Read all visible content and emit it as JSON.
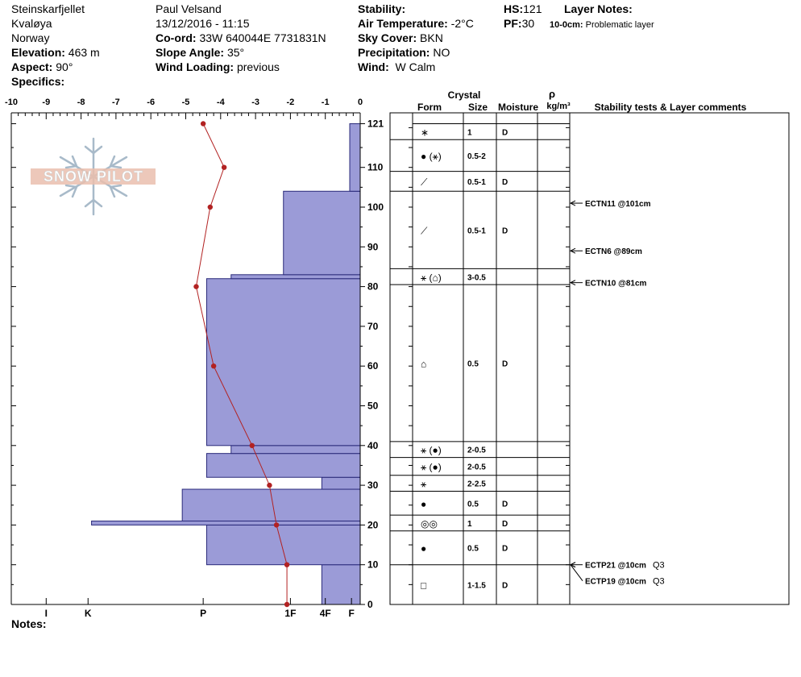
{
  "header": {
    "location": "Steinskarfjellet",
    "region": "Kvaløya",
    "country": "Norway",
    "elevation_label": "Elevation:",
    "elevation": "463 m",
    "aspect_label": "Aspect:",
    "aspect": "90°",
    "specifics_label": "Specifics:",
    "observer": "Paul Velsand",
    "datetime": "13/12/2016 - 11:15",
    "coord_label": "Co-ord:",
    "coord": "33W 640044E 7731831N",
    "slope_label": "Slope Angle:",
    "slope": "35°",
    "wind_loading_label": "Wind Loading:",
    "wind_loading": "previous",
    "stability_label": "Stability:",
    "air_temp_label": "Air Temperature:",
    "air_temp": "-2°C",
    "sky_label": "Sky Cover:",
    "sky": "BKN",
    "precip_label": "Precipitation:",
    "precip": "NO",
    "wind_label": "Wind:",
    "wind": "W Calm",
    "hs_label": "HS:",
    "hs": "121",
    "pf_label": "PF:",
    "pf": "30",
    "layer_notes_label": "Layer Notes:",
    "layer_note_depth": "10-0cm:",
    "layer_note_text": "Problematic layer"
  },
  "logo": {
    "text": "SNOW PILOT"
  },
  "notes_label": "Notes:",
  "table_headers": {
    "crystal": "Crystal",
    "form": "Form",
    "size": "Size",
    "moisture": "Moisture",
    "rho": "ρ",
    "density_unit": "kg/m³",
    "comments": "Stability tests & Layer comments"
  },
  "colors": {
    "hardness_fill": "#9b9bd7",
    "temperature_line": "#b22222"
  },
  "chart_data": {
    "type": "snow-profile",
    "temp_axis": {
      "min": -10,
      "max": 0,
      "ticks": [
        "-10",
        "-9",
        "-8",
        "-7",
        "-6",
        "-5",
        "-4",
        "-3",
        "-2",
        "-1",
        "0"
      ]
    },
    "height_axis": {
      "min": 0,
      "max": 124,
      "ticks": [
        0,
        10,
        20,
        30,
        40,
        50,
        60,
        70,
        80,
        90,
        100,
        110,
        121
      ]
    },
    "hardness_axis_labels": [
      {
        "label": "I",
        "temp": -9
      },
      {
        "label": "K",
        "temp": -7.8
      },
      {
        "label": "P",
        "temp": -4.5
      },
      {
        "label": "1F",
        "temp": -2
      },
      {
        "label": "4F",
        "temp": -1
      },
      {
        "label": "F",
        "temp": -0.25
      }
    ],
    "temperature_profile": [
      {
        "h": 121,
        "t": -4.5
      },
      {
        "h": 110,
        "t": -3.9
      },
      {
        "h": 100,
        "t": -4.3
      },
      {
        "h": 80,
        "t": -4.7
      },
      {
        "h": 60,
        "t": -4.2
      },
      {
        "h": 40,
        "t": -3.1
      },
      {
        "h": 30,
        "t": -2.6
      },
      {
        "h": 20,
        "t": -2.4
      },
      {
        "h": 10,
        "t": -2.1
      },
      {
        "h": 0,
        "t": -2.1
      }
    ],
    "hardness_layers": [
      {
        "bottom": 0,
        "top": 10,
        "hardness": "4F",
        "extent": -1.1
      },
      {
        "bottom": 10,
        "top": 20,
        "hardness": "P",
        "extent": -4.4
      },
      {
        "bottom": 20,
        "top": 21,
        "hardness": "K",
        "extent": -7.7
      },
      {
        "bottom": 21,
        "top": 29,
        "hardness": "P-",
        "extent": -5.1
      },
      {
        "bottom": 29,
        "top": 32,
        "hardness": "4F",
        "extent": -1.1
      },
      {
        "bottom": 32,
        "top": 38,
        "hardness": "P",
        "extent": -4.4
      },
      {
        "bottom": 38,
        "top": 40,
        "hardness": "P-",
        "extent": -3.7
      },
      {
        "bottom": 40,
        "top": 82,
        "hardness": "P",
        "extent": -4.4
      },
      {
        "bottom": 82,
        "top": 83,
        "hardness": "P-",
        "extent": -3.7
      },
      {
        "bottom": 83,
        "top": 104,
        "hardness": "1F",
        "extent": -2.2
      },
      {
        "bottom": 104,
        "top": 121,
        "hardness": "F",
        "extent": -0.3
      }
    ],
    "layers": [
      {
        "top": 121,
        "bottom": 117,
        "form": "∗",
        "size": "1",
        "moisture": "D"
      },
      {
        "top": 117,
        "bottom": 109,
        "form": "● (⚹)",
        "size": "0.5-2",
        "moisture": ""
      },
      {
        "top": 109,
        "bottom": 104,
        "form": "⟋",
        "size": "0.5-1",
        "moisture": "D"
      },
      {
        "top": 104,
        "bottom": 84.5,
        "form": "⟋",
        "size": "0.5-1",
        "moisture": "D"
      },
      {
        "top": 84.5,
        "bottom": 80.5,
        "form": "⚹ (⌂)",
        "size": "3-0.5",
        "moisture": ""
      },
      {
        "top": 80.5,
        "bottom": 41,
        "form": "⌂",
        "size": "0.5",
        "moisture": "D"
      },
      {
        "top": 41,
        "bottom": 37,
        "form": "⚹ (●)",
        "size": "2-0.5",
        "moisture": ""
      },
      {
        "top": 37,
        "bottom": 32.5,
        "form": "⚹ (●)",
        "size": "2-0.5",
        "moisture": ""
      },
      {
        "top": 32.5,
        "bottom": 28.5,
        "form": "⚹",
        "size": "2-2.5",
        "moisture": ""
      },
      {
        "top": 28.5,
        "bottom": 22.5,
        "form": "●",
        "size": "0.5",
        "moisture": "D"
      },
      {
        "top": 22.5,
        "bottom": 18.5,
        "form": "◎◎",
        "size": "1",
        "moisture": "D"
      },
      {
        "top": 18.5,
        "bottom": 10,
        "form": "●",
        "size": "0.5",
        "moisture": "D"
      },
      {
        "top": 10,
        "bottom": 0,
        "form": "□",
        "size": "1-1.5",
        "moisture": "D"
      }
    ],
    "stability_tests": [
      {
        "label": "ECTN11 @101cm",
        "h": 101,
        "quality": ""
      },
      {
        "label": "ECTN6 @89cm",
        "h": 89,
        "quality": ""
      },
      {
        "label": "ECTN10 @81cm",
        "h": 81,
        "quality": ""
      },
      {
        "label": "ECTP21 @10cm",
        "h": 10,
        "quality": "Q3"
      },
      {
        "label": "ECTP19 @10cm",
        "h": 10,
        "quality": "Q3"
      }
    ]
  }
}
